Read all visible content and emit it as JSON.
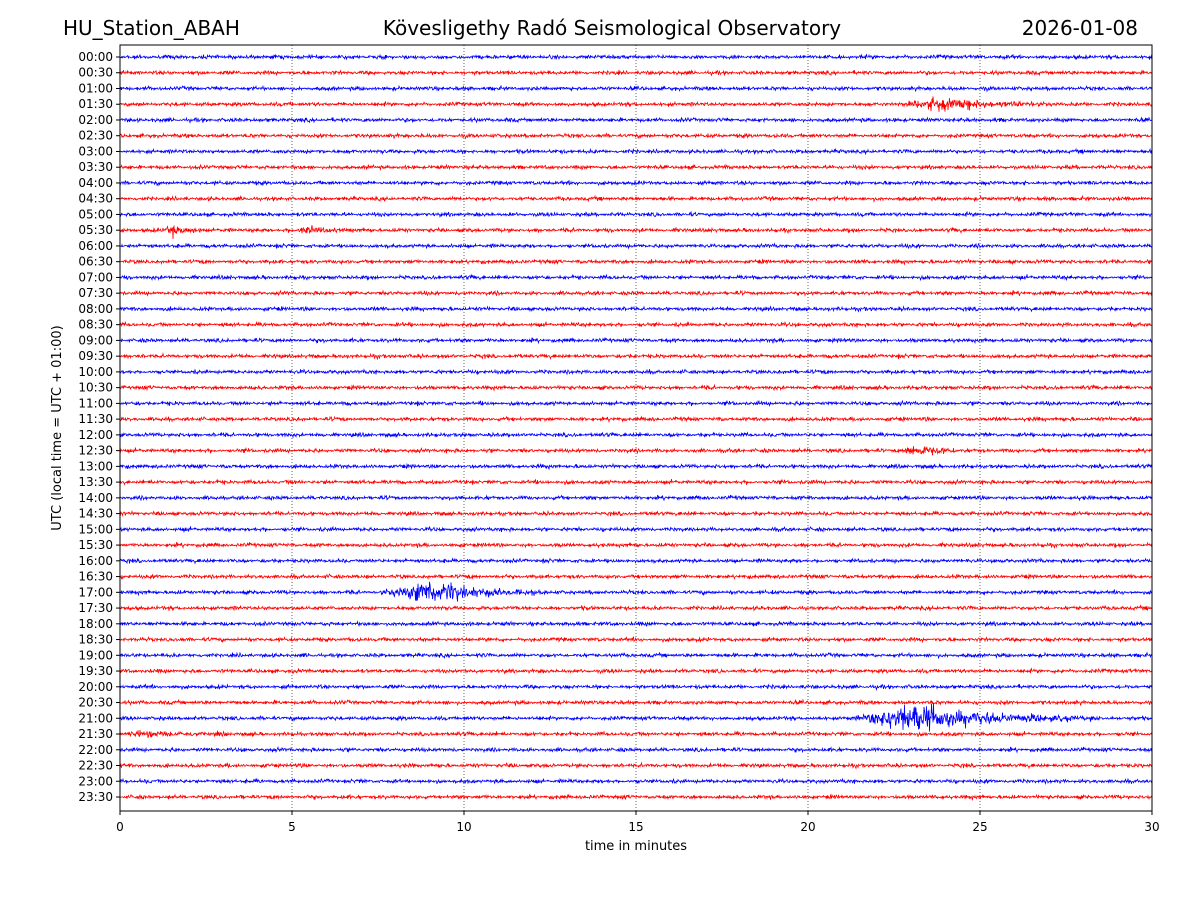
{
  "header": {
    "station": "HU_Station_ABAH",
    "observatory": "Kövesligethy Radó Seismological Observatory",
    "date": "2026-01-08"
  },
  "chart_data": {
    "type": "line",
    "subtype": "helicorder",
    "xlabel": "time in minutes",
    "ylabel": "UTC (local time = UTC + 01:00)",
    "xlim": [
      0,
      30
    ],
    "xticks": [
      0,
      5,
      10,
      15,
      20,
      25,
      30
    ],
    "grid": "vertical dotted at x ticks",
    "row_colors": [
      "#0000ff",
      "#ff0000"
    ],
    "rows": [
      "00:00",
      "00:30",
      "01:00",
      "01:30",
      "02:00",
      "02:30",
      "03:00",
      "03:30",
      "04:00",
      "04:30",
      "05:00",
      "05:30",
      "06:00",
      "06:30",
      "07:00",
      "07:30",
      "08:00",
      "08:30",
      "09:00",
      "09:30",
      "10:00",
      "10:30",
      "11:00",
      "11:30",
      "12:00",
      "12:30",
      "13:00",
      "13:30",
      "14:00",
      "14:30",
      "15:00",
      "15:30",
      "16:00",
      "16:30",
      "17:00",
      "17:30",
      "18:00",
      "18:30",
      "19:00",
      "19:30",
      "20:00",
      "20:30",
      "21:00",
      "21:30",
      "22:00",
      "22:30",
      "23:00",
      "23:30"
    ],
    "noise_level": 1,
    "events": [
      {
        "row": "01:30",
        "start_min": 22.8,
        "peak_min": 23.8,
        "end_min": 27.5,
        "relative_amplitude": 5
      },
      {
        "row": "05:30",
        "start_min": 1.3,
        "peak_min": 1.5,
        "end_min": 2.5,
        "relative_amplitude": 4
      },
      {
        "row": "05:30",
        "start_min": 5.2,
        "peak_min": 5.4,
        "end_min": 6.8,
        "relative_amplitude": 3
      },
      {
        "row": "12:30",
        "start_min": 22.8,
        "peak_min": 23.0,
        "end_min": 24.6,
        "relative_amplitude": 6
      },
      {
        "row": "17:00",
        "start_min": 7.5,
        "peak_min": 9.2,
        "end_min": 12.5,
        "relative_amplitude": 9
      },
      {
        "row": "21:00",
        "start_min": 21.4,
        "peak_min": 23.0,
        "end_min": 28.5,
        "relative_amplitude": 12
      },
      {
        "row": "21:30",
        "start_min": 0.0,
        "peak_min": 0.5,
        "end_min": 3.5,
        "relative_amplitude": 2
      }
    ]
  }
}
